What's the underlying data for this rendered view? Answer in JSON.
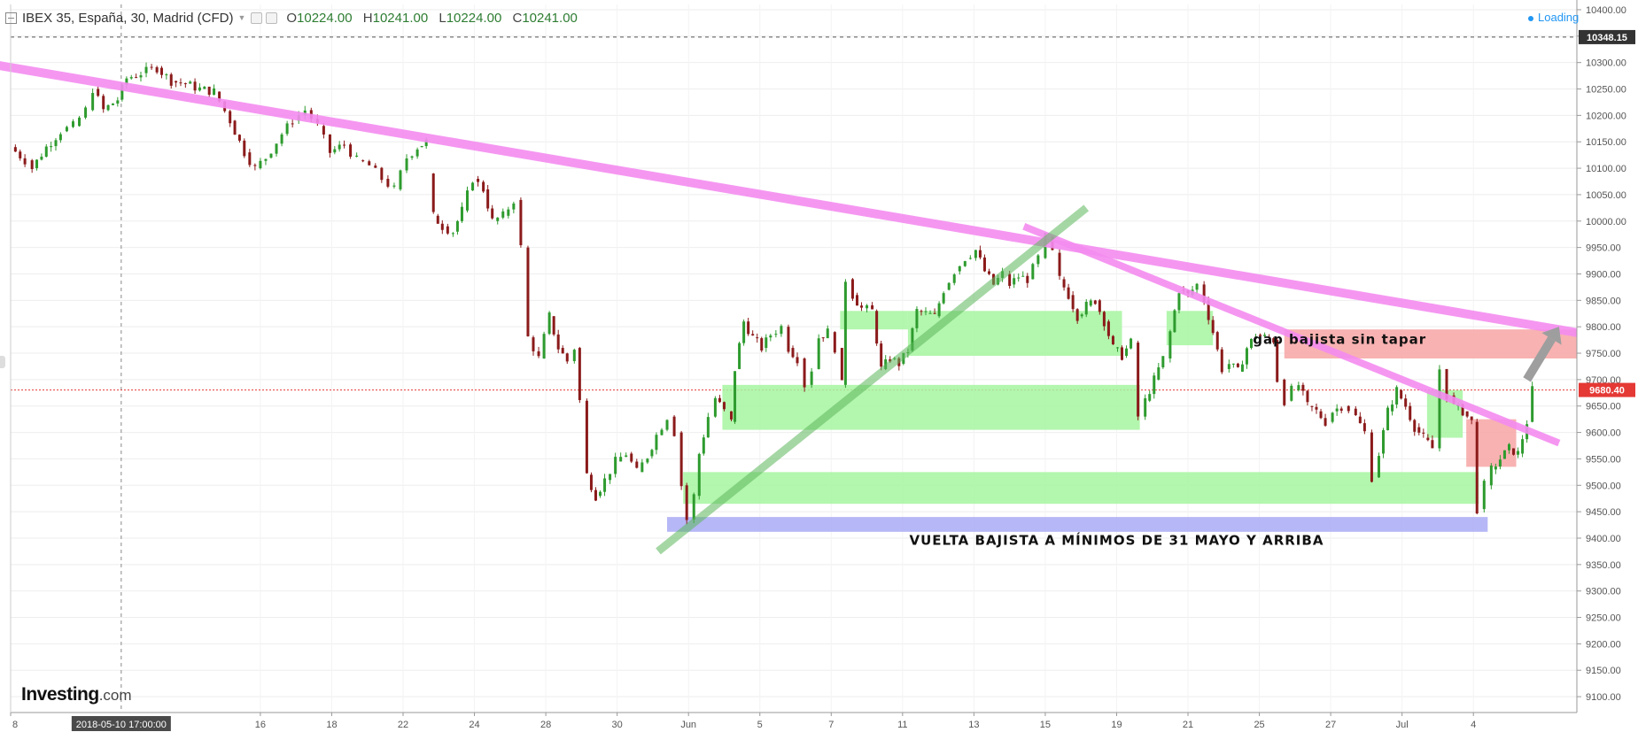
{
  "header": {
    "symbol": "IBEX 35, España, 30, Madrid (CFD)",
    "open_label": "O",
    "open": "10224.00",
    "high_label": "H",
    "high": "10241.00",
    "low_label": "L",
    "low": "10224.00",
    "close_label": "C",
    "close": "10241.00"
  },
  "status": {
    "loading": "Loading"
  },
  "brand": {
    "name": "Investing",
    "suffix": ".com"
  },
  "colors": {
    "up": "#2e9b2e",
    "down": "#8b1a1a",
    "trendline": "#f48cf0",
    "support_line": "#5cb85c",
    "zone_green": "#a6f5a0",
    "zone_red": "#f7a4a4",
    "zone_blue": "#a9aaf5",
    "arrow": "#9e9e9e",
    "current_price_badge": "#e53935",
    "ref_price_badge": "#333333"
  },
  "chart_data": {
    "type": "candlestick",
    "instrument": "IBEX 35, España, 30, Madrid (CFD)",
    "timeframe": "30",
    "ylim": [
      9070,
      10410
    ],
    "y_ticks": [
      9100,
      9150,
      9200,
      9250,
      9300,
      9350,
      9400,
      9450,
      9500,
      9550,
      9600,
      9650,
      9700,
      9750,
      9800,
      9850,
      9900,
      9950,
      10000,
      10050,
      10100,
      10150,
      10200,
      10250,
      10300,
      10350,
      10400
    ],
    "y_tick_labels": [
      "9100.00",
      "9150.00",
      "9200.00",
      "9250.00",
      "9300.00",
      "9350.00",
      "9400.00",
      "9450.00",
      "9500.00",
      "9550.00",
      "9600.00",
      "9650.00",
      "9700.00",
      "9750.00",
      "9800.00",
      "9850.00",
      "9900.00",
      "9950.00",
      "10000.00",
      "10050.00",
      "10100.00",
      "10150.00",
      "10200.00",
      "10250.00",
      "10300.00",
      "10350.00",
      "10400.00"
    ],
    "x_axis": {
      "labels": [
        "8",
        "16",
        "18",
        "22",
        "24",
        "28",
        "30",
        "Jun",
        "5",
        "7",
        "11",
        "13",
        "15",
        "19",
        "21",
        "25",
        "27",
        "Jul",
        "4"
      ],
      "label_positions": [
        0,
        14,
        18,
        22,
        26,
        30,
        34,
        38,
        42,
        46,
        50,
        54,
        58,
        62,
        66,
        70,
        74,
        78,
        82
      ],
      "cursor_label": "2018-05-10 17:00:00",
      "cursor_position": 6.2,
      "max": 87.8
    },
    "reference_price": {
      "value": 10348.15,
      "label": "10348.15"
    },
    "current_price": {
      "value": 9680.4,
      "label": "9680.40"
    },
    "price_path": [
      [
        0,
        10140
      ],
      [
        0.8,
        10115
      ],
      [
        1.2,
        10100
      ],
      [
        2,
        10140
      ],
      [
        2.8,
        10170
      ],
      [
        3.5,
        10180
      ],
      [
        4.2,
        10210
      ],
      [
        4.6,
        10250
      ],
      [
        5.2,
        10210
      ],
      [
        6.0,
        10230
      ],
      [
        6.5,
        10270
      ],
      [
        7.3,
        10280
      ],
      [
        8.2,
        10290
      ],
      [
        9.0,
        10265
      ],
      [
        9.8,
        10260
      ],
      [
        10.6,
        10250
      ],
      [
        11.4,
        10245
      ],
      [
        12.3,
        10190
      ],
      [
        13.1,
        10130
      ],
      [
        13.7,
        10100
      ],
      [
        14.3,
        10120
      ],
      [
        15.2,
        10165
      ],
      [
        15.8,
        10190
      ],
      [
        16.5,
        10210
      ],
      [
        17.2,
        10180
      ],
      [
        17.9,
        10130
      ],
      [
        18.7,
        10145
      ],
      [
        19.4,
        10115
      ],
      [
        20.1,
        10105
      ],
      [
        20.8,
        10080
      ],
      [
        21.5,
        10060
      ],
      [
        22.2,
        10120
      ],
      [
        22.8,
        10140
      ],
      [
        23.3,
        10150
      ],
      [
        23.3,
        10090
      ],
      [
        23.7,
        10010
      ],
      [
        24.2,
        9990
      ],
      [
        24.8,
        9980
      ],
      [
        25.3,
        10020
      ],
      [
        25.9,
        10080
      ],
      [
        26.5,
        10060
      ],
      [
        27.0,
        10000
      ],
      [
        27.6,
        10010
      ],
      [
        28.2,
        10040
      ],
      [
        28.6,
        9950
      ],
      [
        29.0,
        9780
      ],
      [
        29.6,
        9740
      ],
      [
        30.2,
        9820
      ],
      [
        30.7,
        9760
      ],
      [
        31.2,
        9735
      ],
      [
        31.6,
        9760
      ],
      [
        31.9,
        9660
      ],
      [
        32.3,
        9520
      ],
      [
        32.8,
        9480
      ],
      [
        33.3,
        9510
      ],
      [
        33.9,
        9545
      ],
      [
        34.5,
        9560
      ],
      [
        35.1,
        9525
      ],
      [
        35.7,
        9555
      ],
      [
        36.2,
        9595
      ],
      [
        36.8,
        9630
      ],
      [
        37.2,
        9600
      ],
      [
        37.6,
        9500
      ],
      [
        37.9,
        9435
      ],
      [
        38.3,
        9480
      ],
      [
        38.6,
        9560
      ],
      [
        39.1,
        9630
      ],
      [
        39.5,
        9665
      ],
      [
        40.0,
        9640
      ],
      [
        40.4,
        9620
      ],
      [
        40.6,
        9720
      ],
      [
        41.1,
        9810
      ],
      [
        41.6,
        9780
      ],
      [
        42.1,
        9760
      ],
      [
        42.6,
        9785
      ],
      [
        43.2,
        9800
      ],
      [
        43.6,
        9760
      ],
      [
        44.1,
        9740
      ],
      [
        44.5,
        9690
      ],
      [
        44.9,
        9720
      ],
      [
        45.3,
        9780
      ],
      [
        45.8,
        9790
      ],
      [
        46.2,
        9760
      ],
      [
        46.6,
        9690
      ],
      [
        46.8,
        9890
      ],
      [
        47.2,
        9860
      ],
      [
        47.7,
        9835
      ],
      [
        48.3,
        9830
      ],
      [
        48.8,
        9720
      ],
      [
        49.3,
        9740
      ],
      [
        49.8,
        9730
      ],
      [
        50.3,
        9755
      ],
      [
        50.8,
        9830
      ],
      [
        51.3,
        9825
      ],
      [
        51.8,
        9820
      ],
      [
        52.3,
        9870
      ],
      [
        52.9,
        9905
      ],
      [
        53.5,
        9930
      ],
      [
        54.1,
        9945
      ],
      [
        54.6,
        9905
      ],
      [
        55.1,
        9880
      ],
      [
        55.6,
        9900
      ],
      [
        56.0,
        9880
      ],
      [
        56.5,
        9895
      ],
      [
        57.0,
        9890
      ],
      [
        57.6,
        9930
      ],
      [
        58.0,
        9970
      ],
      [
        58.4,
        9940
      ],
      [
        58.8,
        9890
      ],
      [
        59.3,
        9860
      ],
      [
        59.8,
        9820
      ],
      [
        60.3,
        9840
      ],
      [
        60.8,
        9850
      ],
      [
        61.3,
        9810
      ],
      [
        61.8,
        9760
      ],
      [
        62.3,
        9745
      ],
      [
        62.8,
        9770
      ],
      [
        63.2,
        9630
      ],
      [
        63.6,
        9660
      ],
      [
        64.1,
        9700
      ],
      [
        64.6,
        9740
      ],
      [
        65.0,
        9790
      ],
      [
        65.5,
        9870
      ],
      [
        66.0,
        9860
      ],
      [
        66.5,
        9880
      ],
      [
        66.9,
        9850
      ],
      [
        67.4,
        9790
      ],
      [
        67.9,
        9720
      ],
      [
        68.3,
        9730
      ],
      [
        68.8,
        9715
      ],
      [
        69.3,
        9760
      ],
      [
        69.8,
        9785
      ],
      [
        70.3,
        9780
      ],
      [
        70.8,
        9775
      ],
      [
        71.0,
        9700
      ],
      [
        71.4,
        9660
      ],
      [
        71.8,
        9680
      ],
      [
        72.2,
        9690
      ],
      [
        72.7,
        9650
      ],
      [
        73.2,
        9640
      ],
      [
        73.7,
        9620
      ],
      [
        74.1,
        9640
      ],
      [
        74.6,
        9650
      ],
      [
        75.0,
        9645
      ],
      [
        75.4,
        9630
      ],
      [
        75.9,
        9600
      ],
      [
        76.3,
        9515
      ],
      [
        76.7,
        9560
      ],
      [
        77.2,
        9640
      ],
      [
        77.7,
        9680
      ],
      [
        78.2,
        9650
      ],
      [
        78.7,
        9610
      ],
      [
        79.2,
        9590
      ],
      [
        79.7,
        9570
      ],
      [
        80.1,
        9720
      ],
      [
        80.5,
        9670
      ],
      [
        80.9,
        9650
      ],
      [
        81.4,
        9640
      ],
      [
        81.9,
        9620
      ],
      [
        82.2,
        9455
      ],
      [
        82.6,
        9500
      ],
      [
        83.0,
        9530
      ],
      [
        83.5,
        9550
      ],
      [
        84.0,
        9570
      ],
      [
        84.5,
        9560
      ],
      [
        85.0,
        9620
      ],
      [
        85.3,
        9680
      ]
    ],
    "trendlines": [
      {
        "name": "trendline-main-descending",
        "from": [
          -2.5,
          10305
        ],
        "to": [
          88.5,
          9785
        ],
        "color": "trendline",
        "width": 10
      },
      {
        "name": "trendline-secondary-descending",
        "from": [
          56.8,
          9990
        ],
        "to": [
          86.8,
          9580
        ],
        "color": "trendline",
        "width": 8
      },
      {
        "name": "trendline-support-ascending",
        "from": [
          36.3,
          9375
        ],
        "to": [
          60.3,
          10025
        ],
        "color": "support_line",
        "width": 9
      }
    ],
    "zones": [
      {
        "name": "zone-green-low",
        "x": [
          37.7,
          82.3
        ],
        "y": [
          9465,
          9525
        ],
        "color": "zone_green"
      },
      {
        "name": "zone-green-mid",
        "x": [
          39.9,
          63.3
        ],
        "y": [
          9605,
          9690
        ],
        "color": "zone_green"
      },
      {
        "name": "zone-green-upper-left",
        "x": [
          46.5,
          50.3
        ],
        "y": [
          9795,
          9830
        ],
        "color": "zone_green"
      },
      {
        "name": "zone-green-upper",
        "x": [
          50.3,
          62.3
        ],
        "y": [
          9745,
          9830
        ],
        "color": "zone_green"
      },
      {
        "name": "zone-green-upper-right",
        "x": [
          64.8,
          67.4
        ],
        "y": [
          9765,
          9830
        ],
        "color": "zone_green"
      },
      {
        "name": "zone-green-right",
        "x": [
          79.4,
          81.4
        ],
        "y": [
          9590,
          9680
        ],
        "color": "zone_green"
      },
      {
        "name": "zone-red-gap",
        "x": [
          71.4,
          88.2
        ],
        "y": [
          9740,
          9795
        ],
        "color": "zone_red"
      },
      {
        "name": "zone-red-right",
        "x": [
          81.6,
          84.4
        ],
        "y": [
          9535,
          9625
        ],
        "color": "zone_red"
      },
      {
        "name": "zone-blue-support",
        "x": [
          36.8,
          82.8
        ],
        "y": [
          9412,
          9440
        ],
        "color": "zone_blue"
      }
    ],
    "arrow": {
      "from": [
        85.0,
        9700
      ],
      "to": [
        86.8,
        9800
      ]
    },
    "annotations": [
      {
        "text": "gap bajista sin tapar",
        "at": [
          74.5,
          9768
        ]
      },
      {
        "text": "VUELTA BAJISTA A MÍNIMOS DE 31 MAYO Y ARRIBA",
        "at": [
          62.0,
          9387
        ]
      }
    ]
  }
}
